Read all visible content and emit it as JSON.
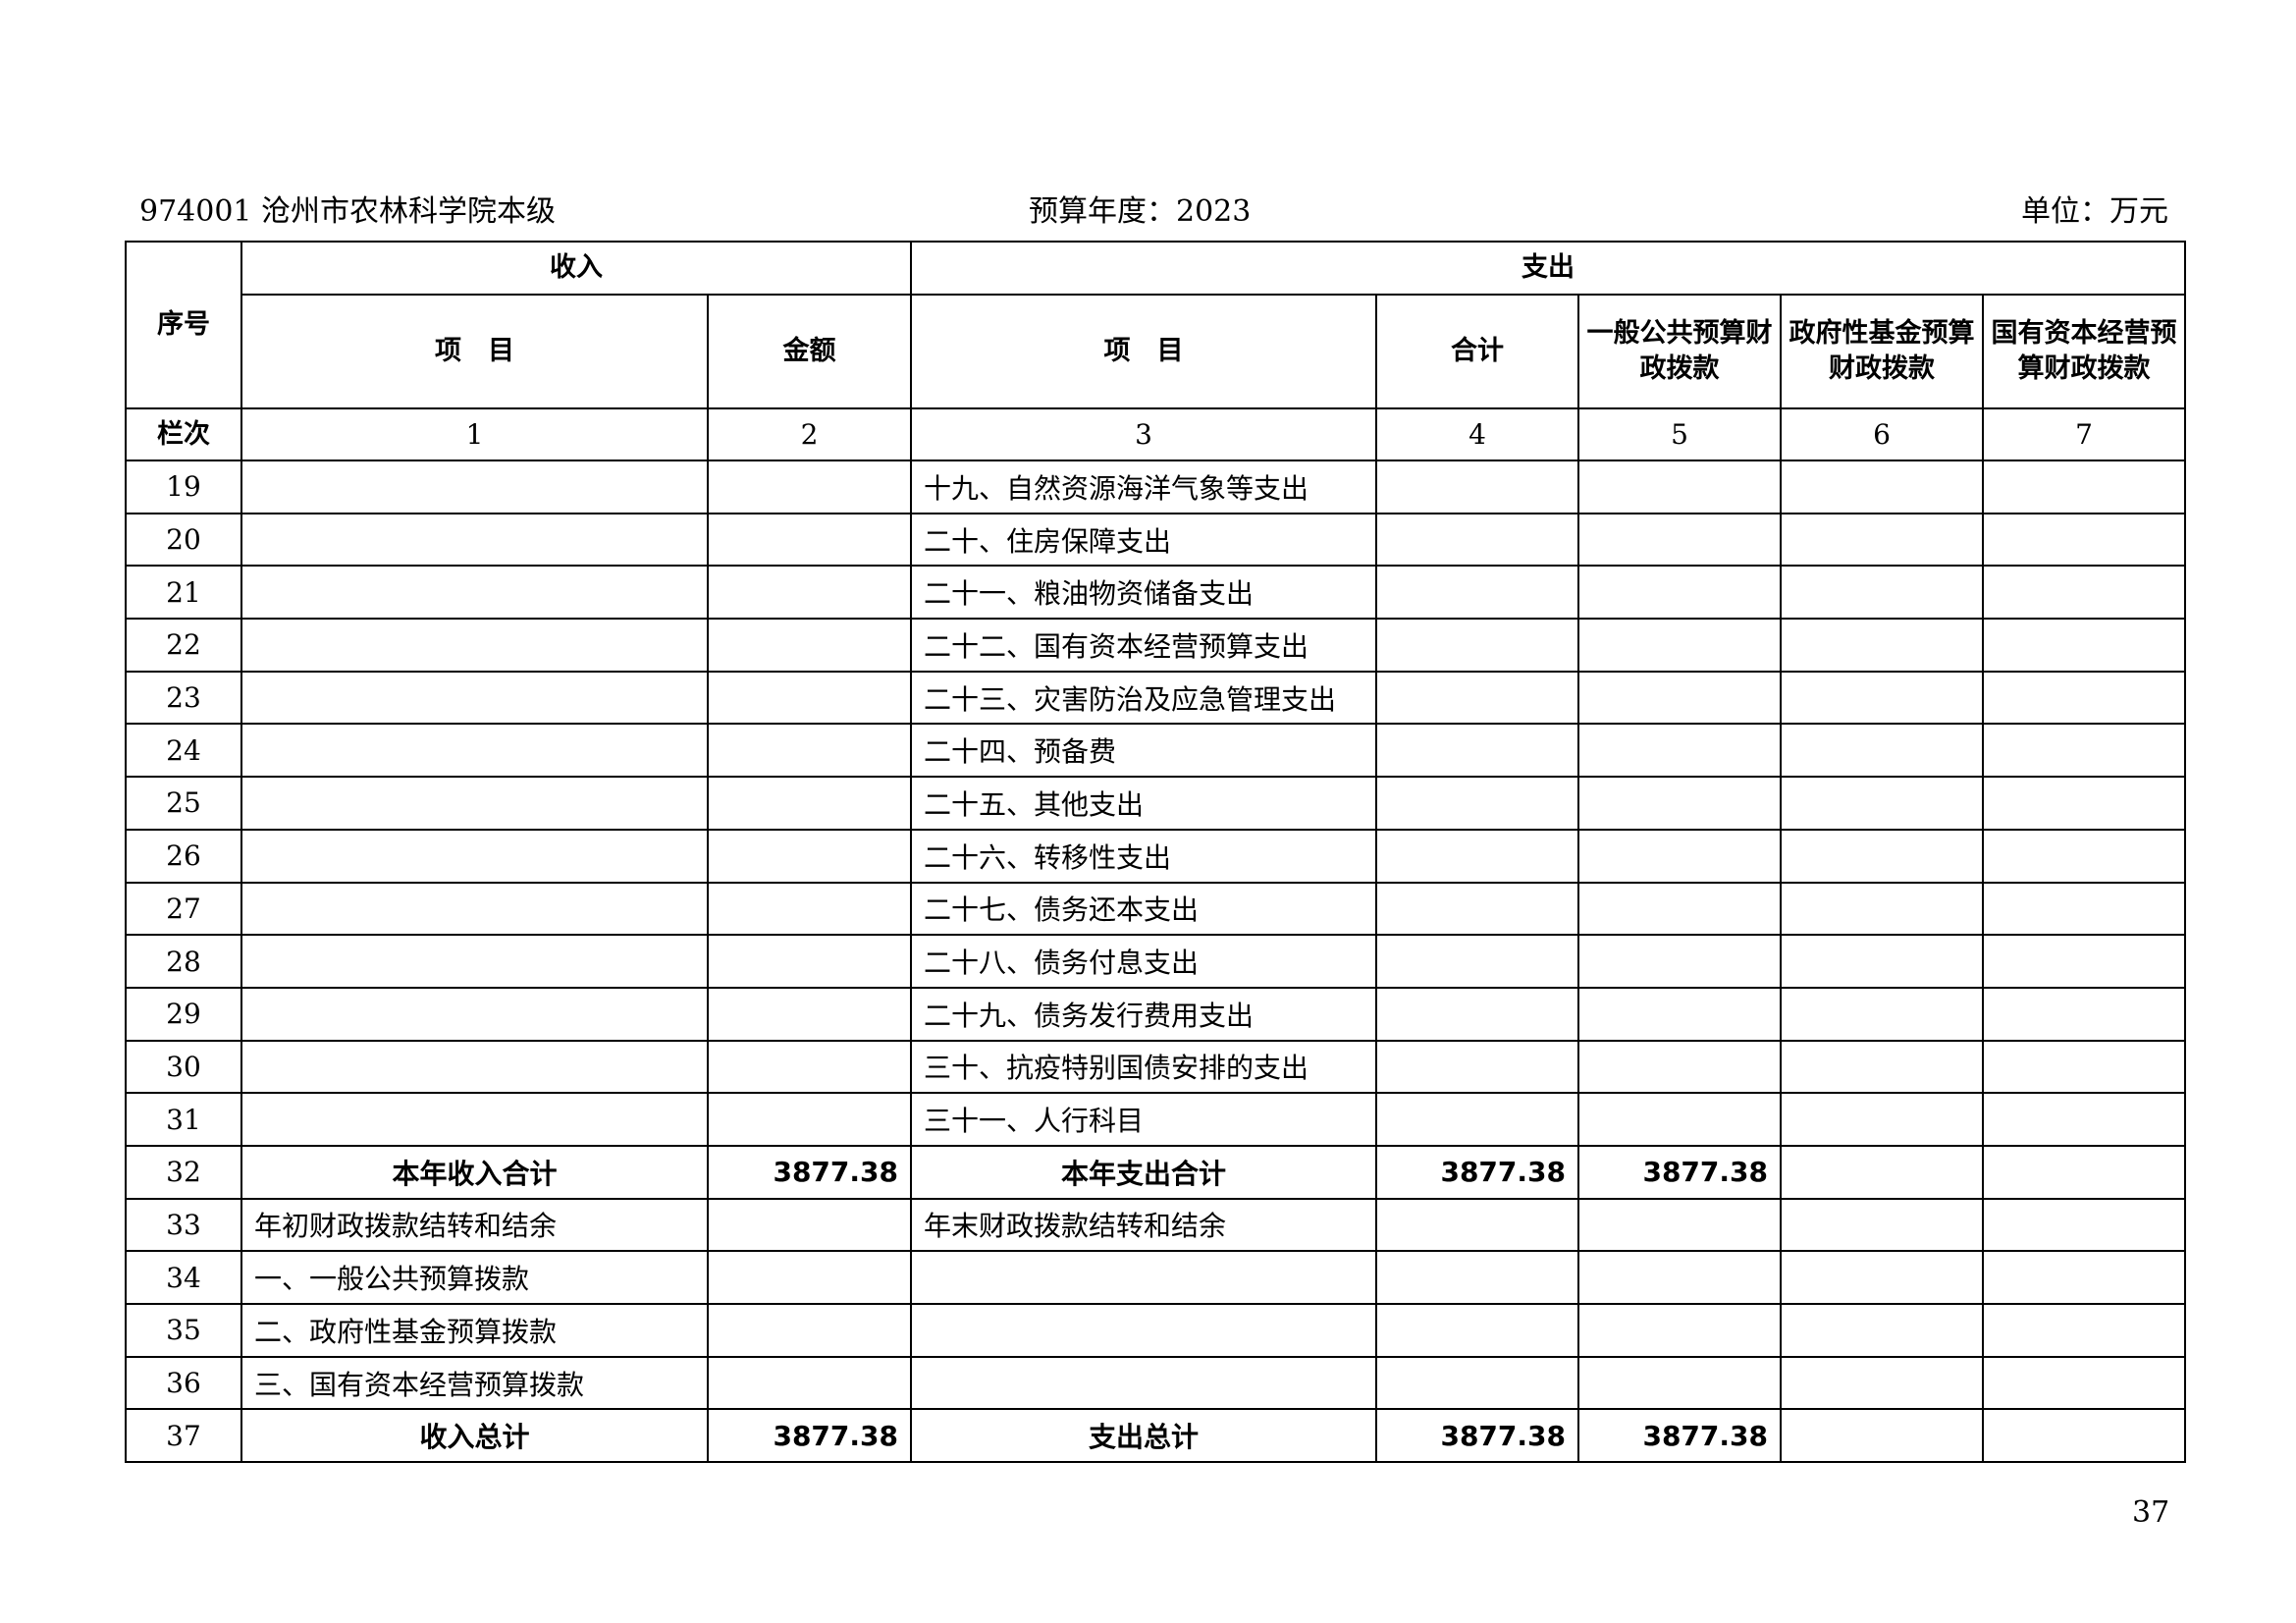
{
  "header": {
    "org": "974001 沧州市农林科学院本级",
    "year": "预算年度：2023",
    "unit": "单位：万元"
  },
  "table": {
    "h_seq": "序号",
    "h_income": "收入",
    "h_expense": "支出",
    "h_item": "项　目",
    "h_amount": "金额",
    "h_item2": "项　目",
    "h_total": "合计",
    "h_general": "一般公共预算财政拨款",
    "h_fund": "政府性基金预算财政拨款",
    "h_state": "国有资本经营预算财政拨款",
    "col_label": "栏次",
    "col_nums": [
      "1",
      "2",
      "3",
      "4",
      "5",
      "6",
      "7"
    ],
    "rows": [
      {
        "seq": "19",
        "in_item": "",
        "in_amt": "",
        "ex_item": "十九、自然资源海洋气象等支出",
        "total": "",
        "general": "",
        "fund": "",
        "state": ""
      },
      {
        "seq": "20",
        "in_item": "",
        "in_amt": "",
        "ex_item": "二十、住房保障支出",
        "total": "",
        "general": "",
        "fund": "",
        "state": ""
      },
      {
        "seq": "21",
        "in_item": "",
        "in_amt": "",
        "ex_item": "二十一、粮油物资储备支出",
        "total": "",
        "general": "",
        "fund": "",
        "state": ""
      },
      {
        "seq": "22",
        "in_item": "",
        "in_amt": "",
        "ex_item": "二十二、国有资本经营预算支出",
        "total": "",
        "general": "",
        "fund": "",
        "state": ""
      },
      {
        "seq": "23",
        "in_item": "",
        "in_amt": "",
        "ex_item": "二十三、灾害防治及应急管理支出",
        "total": "",
        "general": "",
        "fund": "",
        "state": ""
      },
      {
        "seq": "24",
        "in_item": "",
        "in_amt": "",
        "ex_item": "二十四、预备费",
        "total": "",
        "general": "",
        "fund": "",
        "state": ""
      },
      {
        "seq": "25",
        "in_item": "",
        "in_amt": "",
        "ex_item": "二十五、其他支出",
        "total": "",
        "general": "",
        "fund": "",
        "state": ""
      },
      {
        "seq": "26",
        "in_item": "",
        "in_amt": "",
        "ex_item": "二十六、转移性支出",
        "total": "",
        "general": "",
        "fund": "",
        "state": ""
      },
      {
        "seq": "27",
        "in_item": "",
        "in_amt": "",
        "ex_item": "二十七、债务还本支出",
        "total": "",
        "general": "",
        "fund": "",
        "state": ""
      },
      {
        "seq": "28",
        "in_item": "",
        "in_amt": "",
        "ex_item": "二十八、债务付息支出",
        "total": "",
        "general": "",
        "fund": "",
        "state": ""
      },
      {
        "seq": "29",
        "in_item": "",
        "in_amt": "",
        "ex_item": "二十九、债务发行费用支出",
        "total": "",
        "general": "",
        "fund": "",
        "state": ""
      },
      {
        "seq": "30",
        "in_item": "",
        "in_amt": "",
        "ex_item": "三十、抗疫特别国债安排的支出",
        "total": "",
        "general": "",
        "fund": "",
        "state": ""
      },
      {
        "seq": "31",
        "in_item": "",
        "in_amt": "",
        "ex_item": "三十一、人行科目",
        "total": "",
        "general": "",
        "fund": "",
        "state": ""
      },
      {
        "seq": "32",
        "in_item": "本年收入合计",
        "in_amt": "3877.38",
        "ex_item": "本年支出合计",
        "total": "3877.38",
        "general": "3877.38",
        "fund": "",
        "state": "",
        "bold": true
      },
      {
        "seq": "33",
        "in_item": "年初财政拨款结转和结余",
        "in_amt": "",
        "ex_item": "年末财政拨款结转和结余",
        "total": "",
        "general": "",
        "fund": "",
        "state": ""
      },
      {
        "seq": "34",
        "in_item": "一、一般公共预算拨款",
        "in_amt": "",
        "ex_item": "",
        "total": "",
        "general": "",
        "fund": "",
        "state": ""
      },
      {
        "seq": "35",
        "in_item": "二、政府性基金预算拨款",
        "in_amt": "",
        "ex_item": "",
        "total": "",
        "general": "",
        "fund": "",
        "state": ""
      },
      {
        "seq": "36",
        "in_item": "三、国有资本经营预算拨款",
        "in_amt": "",
        "ex_item": "",
        "total": "",
        "general": "",
        "fund": "",
        "state": ""
      },
      {
        "seq": "37",
        "in_item": "收入总计",
        "in_amt": "3877.38",
        "ex_item": "支出总计",
        "total": "3877.38",
        "general": "3877.38",
        "fund": "",
        "state": "",
        "bold": true
      }
    ]
  },
  "page_number": "37"
}
